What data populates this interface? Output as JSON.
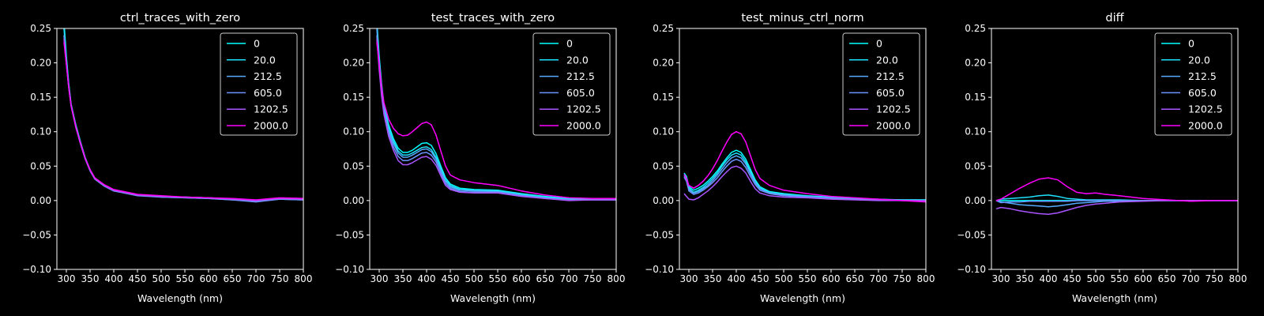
{
  "figure": {
    "background": "#000000",
    "foreground": "#ffffff",
    "legend_entries": [
      "0",
      "20.0",
      "212.5",
      "605.0",
      "1202.5",
      "2000.0"
    ],
    "series_colors": [
      "#00ffff",
      "#1ee1ff",
      "#55aaff",
      "#6c93ff",
      "#aa55ff",
      "#ff00ff"
    ]
  },
  "chart_data": [
    {
      "type": "line",
      "title": "ctrl_traces_with_zero",
      "xlabel": "Wavelength (nm)",
      "ylabel": "",
      "xlim": [
        280,
        800
      ],
      "ylim": [
        -0.1,
        0.25
      ],
      "xticks": [
        300,
        350,
        400,
        450,
        500,
        550,
        600,
        650,
        700,
        750,
        800
      ],
      "yticks": [
        -0.1,
        -0.05,
        0.0,
        0.05,
        0.1,
        0.15,
        0.2,
        0.25
      ],
      "ytick_labels": [
        "−0.10",
        "−0.05",
        "0.00",
        "0.05",
        "0.10",
        "0.15",
        "0.20",
        "0.25"
      ],
      "grid": false,
      "legend_position": "upper right",
      "x": [
        295,
        300,
        305,
        310,
        320,
        330,
        340,
        350,
        360,
        380,
        400,
        450,
        500,
        550,
        600,
        650,
        700,
        750,
        800
      ],
      "series": [
        {
          "name": "0",
          "values": [
            0.26,
            0.21,
            0.17,
            0.14,
            0.11,
            0.085,
            0.062,
            0.045,
            0.033,
            0.022,
            0.015,
            0.008,
            0.006,
            0.005,
            0.004,
            0.002,
            0.0,
            0.003,
            0.002
          ]
        },
        {
          "name": "20.0",
          "values": [
            0.25,
            0.205,
            0.168,
            0.14,
            0.108,
            0.083,
            0.061,
            0.044,
            0.032,
            0.022,
            0.015,
            0.008,
            0.006,
            0.005,
            0.004,
            0.002,
            0.0,
            0.003,
            0.002
          ]
        },
        {
          "name": "212.5",
          "values": [
            0.24,
            0.2,
            0.165,
            0.138,
            0.107,
            0.082,
            0.06,
            0.044,
            0.032,
            0.021,
            0.014,
            0.008,
            0.005,
            0.004,
            0.003,
            0.001,
            -0.001,
            0.002,
            0.001
          ]
        },
        {
          "name": "605.0",
          "values": [
            0.24,
            0.2,
            0.165,
            0.138,
            0.107,
            0.082,
            0.06,
            0.043,
            0.031,
            0.021,
            0.014,
            0.007,
            0.005,
            0.004,
            0.003,
            0.001,
            -0.002,
            0.002,
            0.001
          ]
        },
        {
          "name": "1202.5",
          "values": [
            0.235,
            0.198,
            0.164,
            0.137,
            0.106,
            0.082,
            0.06,
            0.044,
            0.032,
            0.022,
            0.015,
            0.008,
            0.006,
            0.005,
            0.004,
            0.002,
            0.0,
            0.003,
            0.002
          ]
        },
        {
          "name": "2000.0",
          "values": [
            0.23,
            0.198,
            0.165,
            0.138,
            0.107,
            0.083,
            0.061,
            0.045,
            0.033,
            0.023,
            0.016,
            0.009,
            0.007,
            0.005,
            0.004,
            0.003,
            0.001,
            0.004,
            0.003
          ]
        }
      ]
    },
    {
      "type": "line",
      "title": "test_traces_with_zero",
      "xlabel": "Wavelength (nm)",
      "ylabel": "",
      "xlim": [
        280,
        800
      ],
      "ylim": [
        -0.1,
        0.25
      ],
      "xticks": [
        300,
        350,
        400,
        450,
        500,
        550,
        600,
        650,
        700,
        750,
        800
      ],
      "yticks": [
        -0.1,
        -0.05,
        0.0,
        0.05,
        0.1,
        0.15,
        0.2,
        0.25
      ],
      "ytick_labels": [
        "−0.10",
        "−0.05",
        "0.00",
        "0.05",
        "0.10",
        "0.15",
        "0.20",
        "0.25"
      ],
      "grid": false,
      "legend_position": "upper right",
      "x": [
        295,
        300,
        305,
        310,
        320,
        330,
        340,
        350,
        360,
        370,
        380,
        390,
        400,
        410,
        420,
        430,
        440,
        450,
        470,
        500,
        550,
        600,
        650,
        700,
        750,
        800
      ],
      "series": [
        {
          "name": "0",
          "values": [
            0.26,
            0.21,
            0.17,
            0.14,
            0.11,
            0.09,
            0.076,
            0.07,
            0.07,
            0.073,
            0.078,
            0.083,
            0.084,
            0.08,
            0.068,
            0.05,
            0.033,
            0.024,
            0.018,
            0.016,
            0.015,
            0.01,
            0.006,
            0.003,
            0.002,
            0.002
          ]
        },
        {
          "name": "20.0",
          "values": [
            0.255,
            0.205,
            0.165,
            0.138,
            0.105,
            0.086,
            0.072,
            0.066,
            0.066,
            0.069,
            0.073,
            0.077,
            0.078,
            0.074,
            0.063,
            0.046,
            0.03,
            0.022,
            0.016,
            0.015,
            0.014,
            0.009,
            0.005,
            0.002,
            0.002,
            0.002
          ]
        },
        {
          "name": "212.5",
          "values": [
            0.25,
            0.2,
            0.162,
            0.135,
            0.102,
            0.083,
            0.069,
            0.063,
            0.063,
            0.066,
            0.07,
            0.074,
            0.075,
            0.071,
            0.06,
            0.044,
            0.028,
            0.02,
            0.015,
            0.014,
            0.013,
            0.008,
            0.004,
            0.001,
            0.001,
            0.001
          ]
        },
        {
          "name": "605.0",
          "values": [
            0.24,
            0.195,
            0.158,
            0.13,
            0.098,
            0.078,
            0.064,
            0.058,
            0.058,
            0.061,
            0.065,
            0.069,
            0.07,
            0.066,
            0.056,
            0.04,
            0.025,
            0.018,
            0.013,
            0.012,
            0.012,
            0.007,
            0.003,
            0.001,
            0.001,
            0.001
          ]
        },
        {
          "name": "1202.5",
          "values": [
            0.235,
            0.19,
            0.152,
            0.125,
            0.093,
            0.073,
            0.058,
            0.052,
            0.052,
            0.055,
            0.059,
            0.063,
            0.064,
            0.06,
            0.051,
            0.036,
            0.022,
            0.016,
            0.012,
            0.011,
            0.011,
            0.006,
            0.003,
            0.0,
            0.001,
            0.001
          ]
        },
        {
          "name": "2000.0",
          "values": [
            0.23,
            0.198,
            0.165,
            0.142,
            0.118,
            0.105,
            0.097,
            0.094,
            0.095,
            0.1,
            0.106,
            0.112,
            0.114,
            0.11,
            0.095,
            0.072,
            0.05,
            0.037,
            0.03,
            0.026,
            0.022,
            0.014,
            0.008,
            0.004,
            0.003,
            0.003
          ]
        }
      ]
    },
    {
      "type": "line",
      "title": "test_minus_ctrl_norm",
      "xlabel": "Wavelength (nm)",
      "ylabel": "",
      "xlim": [
        280,
        800
      ],
      "ylim": [
        -0.1,
        0.25
      ],
      "xticks": [
        300,
        350,
        400,
        450,
        500,
        550,
        600,
        650,
        700,
        750,
        800
      ],
      "yticks": [
        -0.1,
        -0.05,
        0.0,
        0.05,
        0.1,
        0.15,
        0.2,
        0.25
      ],
      "ytick_labels": [
        "−0.10",
        "−0.05",
        "0.00",
        "0.05",
        "0.10",
        "0.15",
        "0.20",
        "0.25"
      ],
      "grid": false,
      "legend_position": "upper right",
      "x": [
        290,
        295,
        300,
        310,
        320,
        330,
        340,
        350,
        360,
        370,
        380,
        390,
        400,
        410,
        420,
        430,
        440,
        450,
        470,
        500,
        550,
        600,
        650,
        700,
        750,
        800
      ],
      "series": [
        {
          "name": "0",
          "values": [
            0.04,
            0.035,
            0.02,
            0.015,
            0.018,
            0.022,
            0.028,
            0.035,
            0.043,
            0.053,
            0.062,
            0.07,
            0.073,
            0.07,
            0.06,
            0.045,
            0.03,
            0.02,
            0.013,
            0.01,
            0.007,
            0.005,
            0.003,
            0.002,
            0.001,
            0.001
          ]
        },
        {
          "name": "20.0",
          "values": [
            0.038,
            0.032,
            0.018,
            0.012,
            0.015,
            0.019,
            0.025,
            0.032,
            0.04,
            0.05,
            0.059,
            0.066,
            0.069,
            0.066,
            0.056,
            0.042,
            0.028,
            0.018,
            0.012,
            0.009,
            0.006,
            0.004,
            0.002,
            0.001,
            0.001,
            0.001
          ]
        },
        {
          "name": "212.5",
          "values": [
            0.036,
            0.03,
            0.016,
            0.011,
            0.013,
            0.017,
            0.022,
            0.029,
            0.037,
            0.046,
            0.055,
            0.062,
            0.065,
            0.062,
            0.053,
            0.039,
            0.026,
            0.017,
            0.011,
            0.008,
            0.006,
            0.004,
            0.002,
            0.001,
            0.0,
            0.0
          ]
        },
        {
          "name": "605.0",
          "values": [
            0.034,
            0.028,
            0.014,
            0.009,
            0.011,
            0.015,
            0.02,
            0.026,
            0.033,
            0.042,
            0.05,
            0.057,
            0.06,
            0.057,
            0.048,
            0.035,
            0.023,
            0.015,
            0.01,
            0.007,
            0.005,
            0.003,
            0.002,
            0.001,
            0.0,
            0.0
          ]
        },
        {
          "name": "1202.5",
          "values": [
            0.01,
            0.006,
            0.002,
            0.001,
            0.004,
            0.009,
            0.014,
            0.02,
            0.027,
            0.035,
            0.042,
            0.048,
            0.05,
            0.047,
            0.04,
            0.028,
            0.017,
            0.011,
            0.007,
            0.005,
            0.004,
            0.002,
            0.001,
            0.0,
            0.0,
            0.0
          ]
        },
        {
          "name": "2000.0",
          "values": [
            0.038,
            0.032,
            0.022,
            0.018,
            0.022,
            0.028,
            0.036,
            0.046,
            0.058,
            0.072,
            0.085,
            0.096,
            0.1,
            0.097,
            0.085,
            0.065,
            0.045,
            0.032,
            0.022,
            0.015,
            0.01,
            0.006,
            0.004,
            0.002,
            0.0,
            -0.002
          ]
        }
      ]
    },
    {
      "type": "line",
      "title": "diff",
      "xlabel": "Wavelength (nm)",
      "ylabel": "",
      "xlim": [
        280,
        800
      ],
      "ylim": [
        -0.1,
        0.25
      ],
      "xticks": [
        300,
        350,
        400,
        450,
        500,
        550,
        600,
        650,
        700,
        750,
        800
      ],
      "yticks": [
        -0.1,
        -0.05,
        0.0,
        0.05,
        0.1,
        0.15,
        0.2,
        0.25
      ],
      "ytick_labels": [
        "−0.10",
        "−0.05",
        "0.00",
        "0.05",
        "0.10",
        "0.15",
        "0.20",
        "0.25"
      ],
      "grid": false,
      "legend_position": "upper right",
      "x": [
        290,
        300,
        320,
        340,
        360,
        380,
        400,
        420,
        440,
        460,
        480,
        500,
        520,
        550,
        600,
        650,
        700,
        750,
        800
      ],
      "series": [
        {
          "name": "0",
          "values": [
            0.0,
            0.0,
            0.0,
            0.0,
            0.0,
            0.0,
            0.0,
            0.0,
            0.0,
            0.0,
            0.0,
            0.0,
            0.0,
            0.0,
            0.0,
            0.0,
            0.0,
            0.0,
            0.0
          ]
        },
        {
          "name": "20.0",
          "values": [
            0.0,
            0.002,
            0.003,
            0.004,
            0.005,
            0.007,
            0.008,
            0.006,
            0.003,
            0.002,
            0.001,
            0.001,
            0.001,
            0.001,
            0.0,
            0.0,
            0.0,
            0.0,
            0.0
          ]
        },
        {
          "name": "212.5",
          "values": [
            0.0,
            -0.002,
            -0.004,
            -0.006,
            -0.007,
            -0.008,
            -0.009,
            -0.008,
            -0.006,
            -0.004,
            -0.003,
            -0.002,
            -0.001,
            -0.001,
            0.0,
            0.0,
            0.0,
            0.0,
            0.0
          ]
        },
        {
          "name": "605.0",
          "values": [
            0.0,
            -0.003,
            -0.002,
            -0.002,
            -0.001,
            -0.001,
            -0.001,
            -0.001,
            -0.001,
            0.0,
            0.0,
            0.0,
            0.0,
            0.0,
            0.0,
            0.0,
            0.0,
            0.0,
            0.0
          ]
        },
        {
          "name": "1202.5",
          "values": [
            -0.012,
            -0.01,
            -0.012,
            -0.015,
            -0.017,
            -0.019,
            -0.02,
            -0.018,
            -0.014,
            -0.01,
            -0.007,
            -0.005,
            -0.004,
            -0.002,
            -0.001,
            0.0,
            0.0,
            0.0,
            0.0
          ]
        },
        {
          "name": "2000.0",
          "values": [
            0.0,
            0.002,
            0.01,
            0.018,
            0.025,
            0.031,
            0.033,
            0.03,
            0.02,
            0.012,
            0.01,
            0.011,
            0.009,
            0.007,
            0.003,
            0.001,
            -0.001,
            0.0,
            0.0
          ]
        }
      ]
    }
  ]
}
